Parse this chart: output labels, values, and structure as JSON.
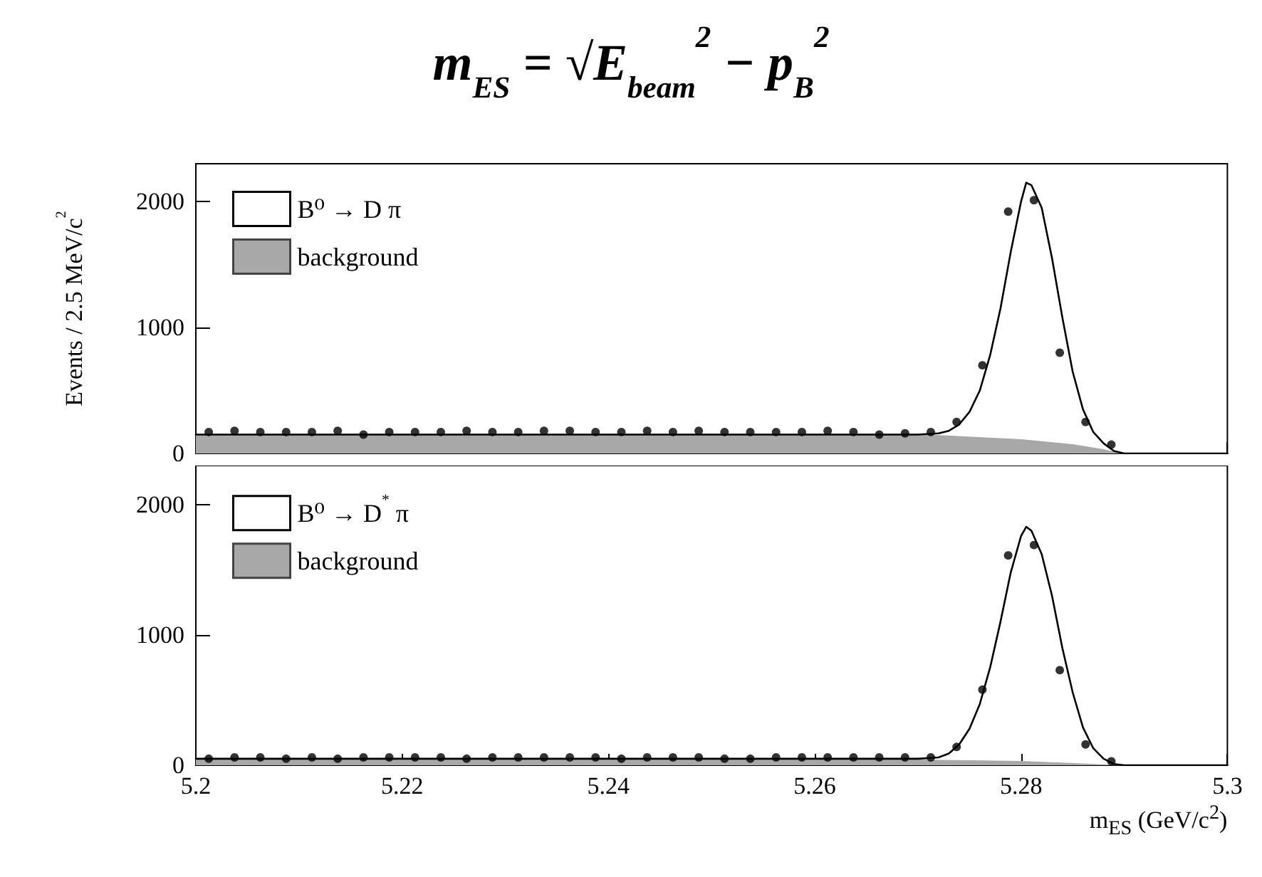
{
  "chart_data": [
    {
      "type": "line",
      "title": "m$_{ES}$ = √E$_{beam}$$^{2}$ − p$_{B}$$^{2}$",
      "ylabel": "Events / 2.5 MeV/c$^{2}$",
      "xlim": [
        5.2,
        5.3
      ],
      "xticks": [
        5.2,
        5.22,
        5.24,
        5.26,
        5.28,
        5.3
      ],
      "ylim": [
        0,
        2300
      ],
      "yticks": [
        0,
        1000,
        2000
      ],
      "tick_labels": "y",
      "grid": false,
      "legend": "top left",
      "series": [
        {
          "type": "area",
          "name": "background",
          "color": "#a8a8a8",
          "x": [
            5.2,
            5.27,
            5.28,
            5.285,
            5.288,
            5.2895,
            5.3
          ],
          "values": [
            150,
            150,
            110,
            70,
            30,
            0,
            0
          ]
        },
        {
          "type": "line",
          "name": "B⁰ → D π",
          "color": "#000000",
          "marker": "none",
          "x": [
            5.2,
            5.27,
            5.272,
            5.273,
            5.274,
            5.275,
            5.276,
            5.277,
            5.278,
            5.279,
            5.28,
            5.2805,
            5.281,
            5.282,
            5.283,
            5.284,
            5.285,
            5.286,
            5.287,
            5.288,
            5.289,
            5.29,
            5.3
          ],
          "values": [
            150,
            150,
            160,
            180,
            230,
            330,
            500,
            780,
            1150,
            1600,
            2000,
            2150,
            2130,
            1950,
            1550,
            1080,
            650,
            350,
            170,
            80,
            20,
            0,
            0
          ]
        },
        {
          "type": "scatter",
          "color": "#000000",
          "marker": "circle",
          "x": [
            5.20125,
            5.20375,
            5.20625,
            5.20875,
            5.21125,
            5.21375,
            5.21625,
            5.21875,
            5.22125,
            5.22375,
            5.22625,
            5.22875,
            5.23125,
            5.23375,
            5.23625,
            5.23875,
            5.24125,
            5.24375,
            5.24625,
            5.24875,
            5.25125,
            5.25375,
            5.25625,
            5.25875,
            5.26125,
            5.26375,
            5.26625,
            5.26875,
            5.27125,
            5.27375,
            5.27625,
            5.27875,
            5.28125,
            5.28375,
            5.28625,
            5.28875
          ],
          "values": [
            170,
            180,
            170,
            170,
            170,
            180,
            150,
            170,
            170,
            170,
            180,
            170,
            170,
            180,
            180,
            170,
            170,
            180,
            170,
            180,
            170,
            170,
            170,
            170,
            180,
            170,
            150,
            160,
            170,
            250,
            700,
            1920,
            2010,
            800,
            250,
            70
          ]
        }
      ]
    },
    {
      "type": "line",
      "xlabel": "m$_{ES}$ (GeV/c$^{2}$)",
      "xlim": [
        5.2,
        5.3
      ],
      "xticks": [
        5.2,
        5.22,
        5.24,
        5.26,
        5.28,
        5.3
      ],
      "ylim": [
        0,
        2300
      ],
      "yticks": [
        0,
        1000,
        2000
      ],
      "grid": false,
      "legend": "top left",
      "series": [
        {
          "type": "area",
          "name": "background",
          "color": "#a8a8a8",
          "x": [
            5.2,
            5.27,
            5.28,
            5.286,
            5.2895,
            5.3
          ],
          "values": [
            40,
            40,
            30,
            10,
            0,
            0
          ]
        },
        {
          "type": "line",
          "name": "B⁰ → D$^{*}$ π",
          "color": "#000000",
          "marker": "none",
          "x": [
            5.2,
            5.27,
            5.272,
            5.273,
            5.274,
            5.275,
            5.276,
            5.277,
            5.278,
            5.279,
            5.28,
            5.2805,
            5.281,
            5.282,
            5.283,
            5.284,
            5.285,
            5.286,
            5.287,
            5.288,
            5.289,
            5.29,
            5.3
          ],
          "values": [
            50,
            50,
            60,
            90,
            160,
            280,
            470,
            750,
            1100,
            1480,
            1760,
            1830,
            1800,
            1620,
            1300,
            900,
            560,
            290,
            130,
            50,
            10,
            0,
            0
          ]
        },
        {
          "type": "scatter",
          "color": "#000000",
          "marker": "circle",
          "x": [
            5.20125,
            5.20375,
            5.20625,
            5.20875,
            5.21125,
            5.21375,
            5.21625,
            5.21875,
            5.22125,
            5.22375,
            5.22625,
            5.22875,
            5.23125,
            5.23375,
            5.23625,
            5.23875,
            5.24125,
            5.24375,
            5.24625,
            5.24875,
            5.25125,
            5.25375,
            5.25625,
            5.25875,
            5.26125,
            5.26375,
            5.26625,
            5.26875,
            5.27125,
            5.27375,
            5.27625,
            5.27875,
            5.28125,
            5.28375,
            5.28625,
            5.28875
          ],
          "values": [
            50,
            60,
            60,
            50,
            60,
            50,
            60,
            60,
            60,
            60,
            50,
            60,
            60,
            60,
            60,
            60,
            50,
            60,
            60,
            60,
            50,
            50,
            60,
            60,
            60,
            60,
            60,
            60,
            60,
            140,
            580,
            1610,
            1690,
            730,
            160,
            30
          ]
        }
      ]
    }
  ]
}
